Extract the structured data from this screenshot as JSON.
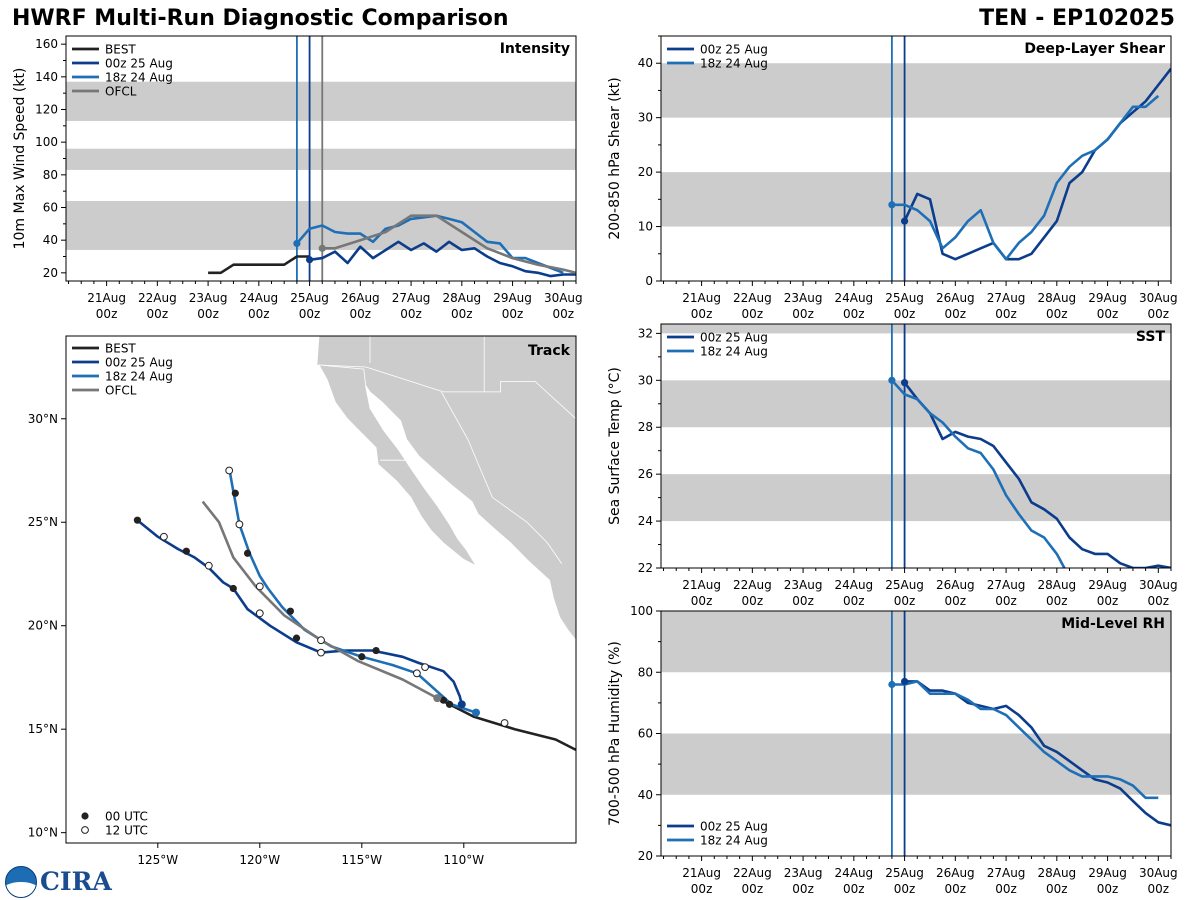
{
  "header": {
    "title": "HWRF Multi-Run Diagnostic Comparison",
    "storm": "TEN - EP102025"
  },
  "colors": {
    "best": "#222222",
    "run00": "#0b3d8c",
    "run18": "#1f6fb7",
    "ofcl": "#777777",
    "band": "#cccccc",
    "land": "#cccccc"
  },
  "time_ticks": [
    "21Aug",
    "22Aug",
    "23Aug",
    "24Aug",
    "25Aug",
    "26Aug",
    "27Aug",
    "28Aug",
    "29Aug",
    "30Aug"
  ],
  "time_sub": "00z",
  "legend_labels": {
    "best": "BEST",
    "run00": "00z 25 Aug",
    "run18": "18z 24 Aug",
    "ofcl": "OFCL"
  },
  "track_legend_markers": {
    "filled": "00 UTC",
    "open": "12 UTC"
  },
  "logo": {
    "text": "CIRA",
    "emblem": "noaa-logo-icon"
  },
  "chart_data": [
    {
      "id": "intensity",
      "type": "line",
      "title": "Intensity",
      "ylabel": "10m Max Wind Speed (kt)",
      "xlim": [
        -4.8,
        5.25
      ],
      "ylim": [
        15,
        165
      ],
      "yticks": [
        20,
        40,
        60,
        80,
        100,
        120,
        140,
        160
      ],
      "bands": [
        [
          34,
          64
        ],
        [
          83,
          96
        ],
        [
          113,
          137
        ]
      ],
      "vlines": [
        {
          "x": -0.25,
          "series": "run18"
        },
        {
          "x": 0,
          "series": "run00"
        },
        {
          "x": 0.25,
          "series": "ofcl"
        }
      ],
      "series": [
        {
          "key": "best",
          "x": [
            -2,
            -1.75,
            -1.5,
            -1.25,
            -1,
            -0.75,
            -0.5,
            -0.25,
            0
          ],
          "y": [
            20,
            20,
            25,
            25,
            25,
            25,
            25,
            30,
            30
          ]
        },
        {
          "key": "run00",
          "x": [
            0,
            0.25,
            0.5,
            0.75,
            1,
            1.25,
            1.5,
            1.75,
            2,
            2.25,
            2.5,
            2.75,
            3,
            3.25,
            3.5,
            3.75,
            4,
            4.25,
            4.5,
            4.75,
            5,
            5.25
          ],
          "y": [
            28,
            29,
            33,
            26,
            36,
            29,
            34,
            39,
            34,
            38,
            33,
            39,
            34,
            35,
            30,
            26,
            24,
            21,
            20,
            18,
            19,
            19
          ]
        },
        {
          "key": "run18",
          "x": [
            -0.25,
            0,
            0.25,
            0.5,
            0.75,
            1,
            1.25,
            1.5,
            1.75,
            2,
            2.25,
            2.5,
            2.75,
            3,
            3.25,
            3.5,
            3.75,
            4,
            4.25,
            4.5,
            4.75,
            5
          ],
          "y": [
            38,
            47,
            49,
            45,
            44,
            44,
            39,
            47,
            49,
            53,
            54,
            55,
            53,
            51,
            45,
            39,
            38,
            29,
            29,
            26,
            23,
            20
          ]
        },
        {
          "key": "ofcl",
          "x": [
            0.25,
            0.5,
            1,
            1.5,
            1.75,
            2,
            2.25,
            2.5,
            3,
            3.5,
            4,
            4.5,
            5,
            5.25
          ],
          "y": [
            35,
            35,
            40,
            45,
            50,
            55,
            55,
            55,
            45,
            35,
            29,
            25,
            22,
            20
          ]
        }
      ],
      "markers": [
        {
          "series": "run00",
          "x": 0,
          "y": 28
        },
        {
          "series": "run18",
          "x": -0.25,
          "y": 38
        },
        {
          "series": "ofcl",
          "x": 0.25,
          "y": 35
        }
      ]
    },
    {
      "id": "shear",
      "type": "line",
      "title": "Deep-Layer Shear",
      "ylabel": "200-850 hPa Shear (kt)",
      "xlim": [
        -4.8,
        5.25
      ],
      "ylim": [
        0,
        45
      ],
      "yticks": [
        0,
        10,
        20,
        30,
        40
      ],
      "bands": [
        [
          10,
          20
        ],
        [
          30,
          40
        ]
      ],
      "vlines": [
        {
          "x": -0.25,
          "series": "run18"
        },
        {
          "x": 0,
          "series": "run00"
        }
      ],
      "series": [
        {
          "key": "run00",
          "x": [
            0,
            0.25,
            0.5,
            0.75,
            1,
            1.25,
            1.5,
            1.75,
            2,
            2.25,
            2.5,
            2.75,
            3,
            3.25,
            3.5,
            3.75,
            4,
            4.25,
            4.5,
            4.75,
            5,
            5.25
          ],
          "y": [
            11,
            16,
            15,
            5,
            4,
            5,
            6,
            7,
            4,
            4,
            5,
            8,
            11,
            18,
            20,
            24,
            26,
            29,
            31,
            33,
            36,
            39
          ]
        },
        {
          "key": "run18",
          "x": [
            -0.25,
            0,
            0.25,
            0.5,
            0.75,
            1,
            1.25,
            1.5,
            1.75,
            2,
            2.25,
            2.5,
            2.75,
            3,
            3.25,
            3.5,
            3.75,
            4,
            4.25,
            4.5,
            4.75,
            5
          ],
          "y": [
            14,
            14,
            13,
            11,
            6,
            8,
            11,
            13,
            7,
            4,
            7,
            9,
            12,
            18,
            21,
            23,
            24,
            26,
            29,
            32,
            32,
            34
          ]
        }
      ],
      "markers": [
        {
          "series": "run00",
          "x": 0,
          "y": 11
        },
        {
          "series": "run18",
          "x": -0.25,
          "y": 14
        }
      ]
    },
    {
      "id": "sst",
      "type": "line",
      "title": "SST",
      "ylabel": "Sea Surface Temp (°C)",
      "xlim": [
        -4.8,
        5.25
      ],
      "ylim": [
        22,
        32.4
      ],
      "yticks": [
        22,
        24,
        26,
        28,
        30,
        32
      ],
      "bands": [
        [
          24,
          26
        ],
        [
          28,
          30
        ],
        [
          32,
          32.4
        ]
      ],
      "vlines": [
        {
          "x": -0.25,
          "series": "run18"
        },
        {
          "x": 0,
          "series": "run00"
        }
      ],
      "series": [
        {
          "key": "run00",
          "x": [
            0,
            0.25,
            0.5,
            0.75,
            1,
            1.25,
            1.5,
            1.75,
            2,
            2.25,
            2.5,
            2.75,
            3,
            3.25,
            3.5,
            3.75,
            4,
            4.25,
            4.5,
            4.75,
            5,
            5.25
          ],
          "y": [
            29.9,
            29.2,
            28.6,
            27.5,
            27.8,
            27.6,
            27.5,
            27.2,
            26.5,
            25.8,
            24.8,
            24.5,
            24.1,
            23.3,
            22.8,
            22.6,
            22.6,
            22.2,
            22.0,
            22.0,
            22.1,
            22.0
          ]
        },
        {
          "key": "run18",
          "x": [
            -0.25,
            0,
            0.25,
            0.5,
            0.75,
            1,
            1.25,
            1.5,
            1.75,
            2,
            2.25,
            2.5,
            2.75,
            3,
            3.15
          ],
          "y": [
            30.0,
            29.4,
            29.2,
            28.6,
            28.2,
            27.6,
            27.1,
            26.9,
            26.2,
            25.1,
            24.3,
            23.6,
            23.3,
            22.6,
            22.0
          ]
        }
      ],
      "markers": [
        {
          "series": "run00",
          "x": 0,
          "y": 29.9
        },
        {
          "series": "run18",
          "x": -0.25,
          "y": 30.0
        }
      ]
    },
    {
      "id": "rh",
      "type": "line",
      "title": "Mid-Level RH",
      "ylabel": "700-500 hPa Humidity (%)",
      "xlim": [
        -4.8,
        5.25
      ],
      "ylim": [
        20,
        100
      ],
      "yticks": [
        20,
        40,
        60,
        80,
        100
      ],
      "bands": [
        [
          40,
          60
        ],
        [
          80,
          100
        ]
      ],
      "vlines": [
        {
          "x": -0.25,
          "series": "run18"
        },
        {
          "x": 0,
          "series": "run00"
        }
      ],
      "series": [
        {
          "key": "run00",
          "x": [
            0,
            0.25,
            0.5,
            0.75,
            1,
            1.25,
            1.5,
            1.75,
            2,
            2.25,
            2.5,
            2.75,
            3,
            3.25,
            3.5,
            3.75,
            4,
            4.25,
            4.5,
            4.75,
            5,
            5.25
          ],
          "y": [
            77,
            77,
            74,
            74,
            73,
            70,
            69,
            68,
            69,
            66,
            62,
            56,
            54,
            51,
            48,
            45,
            44,
            42,
            38,
            34,
            31,
            30
          ]
        },
        {
          "key": "run18",
          "x": [
            -0.25,
            0,
            0.25,
            0.5,
            0.75,
            1,
            1.25,
            1.5,
            1.75,
            2,
            2.25,
            2.5,
            2.75,
            3,
            3.25,
            3.5,
            3.75,
            4,
            4.25,
            4.5,
            4.75,
            5
          ],
          "y": [
            76,
            76,
            77,
            73,
            73,
            73,
            71,
            68,
            68,
            66,
            62,
            58,
            54,
            51,
            48,
            46,
            46,
            46,
            45,
            43,
            39,
            39
          ]
        }
      ],
      "markers": [
        {
          "series": "run00",
          "x": 0,
          "y": 77
        },
        {
          "series": "run18",
          "x": -0.25,
          "y": 76
        }
      ]
    },
    {
      "id": "track",
      "type": "scatter",
      "title": "Track",
      "lon_range": [
        -129.5,
        -104.5
      ],
      "lat_range": [
        9.5,
        34
      ],
      "lon_ticks": [
        -125,
        -120,
        -115,
        -110
      ],
      "lon_labels": [
        "125°W",
        "120°W",
        "115°W",
        "110°W"
      ],
      "lat_ticks": [
        10,
        15,
        20,
        25,
        30
      ],
      "lat_labels": [
        "10°N",
        "15°N",
        "20°N",
        "25°N",
        "30°N"
      ],
      "tracks": [
        {
          "key": "best",
          "lon": [
            -104.5,
            -105.5,
            -107.5,
            -108.5,
            -109.5,
            -110.1,
            -110.7,
            -111.3
          ],
          "lat": [
            14.0,
            14.5,
            15.0,
            15.3,
            15.6,
            15.9,
            16.2,
            16.5
          ]
        },
        {
          "key": "run00",
          "lon": [
            -110.1,
            -110.2,
            -110.5,
            -111.0,
            -112.2,
            -113.0,
            -114.5,
            -115.8,
            -117.0,
            -118.2,
            -119.5,
            -120.6,
            -121.3,
            -121.8,
            -122.5,
            -123.2,
            -124.0,
            -125.0,
            -126.0
          ],
          "lat": [
            16.2,
            16.6,
            17.3,
            17.8,
            18.2,
            18.5,
            18.8,
            18.8,
            18.7,
            19.2,
            20.0,
            20.8,
            21.8,
            22.1,
            22.8,
            23.3,
            23.7,
            24.3,
            25.1
          ]
        },
        {
          "key": "run18",
          "lon": [
            -109.4,
            -110.0,
            -110.6,
            -112.3,
            -113.5,
            -115.0,
            -116.5,
            -117.8,
            -118.9,
            -119.6,
            -120.0,
            -120.5,
            -121.0,
            -121.2,
            -121.3,
            -121.5
          ],
          "lat": [
            15.8,
            16.0,
            16.2,
            17.7,
            18.1,
            18.5,
            19.0,
            19.8,
            20.9,
            21.8,
            22.4,
            23.5,
            24.9,
            26.0,
            26.5,
            27.6
          ]
        },
        {
          "key": "ofcl",
          "lon": [
            -111.3,
            -113.0,
            -115.2,
            -117.0,
            -118.8,
            -120.2,
            -121.3,
            -122.0,
            -122.8
          ],
          "lat": [
            16.5,
            17.4,
            18.3,
            19.3,
            20.5,
            21.9,
            23.3,
            25.0,
            26.0
          ]
        }
      ],
      "points_filled": [
        [
          -110.7,
          16.2
        ],
        [
          -111.0,
          16.4
        ],
        [
          -114.3,
          18.8
        ],
        [
          -115.0,
          18.5
        ],
        [
          -118.5,
          20.7
        ],
        [
          -120.6,
          23.5
        ],
        [
          -121.2,
          26.4
        ],
        [
          -118.2,
          19.4
        ],
        [
          -121.3,
          21.8
        ],
        [
          -123.6,
          23.6
        ],
        [
          -126.0,
          25.1
        ]
      ],
      "points_open": [
        [
          -108.0,
          15.3
        ],
        [
          -112.3,
          17.7
        ],
        [
          -111.9,
          18.0
        ],
        [
          -117.0,
          18.7
        ],
        [
          -117.0,
          19.3
        ],
        [
          -120.0,
          20.6
        ],
        [
          -120.0,
          21.9
        ],
        [
          -122.5,
          22.9
        ],
        [
          -124.7,
          24.3
        ],
        [
          -121.0,
          24.9
        ],
        [
          -121.5,
          27.5
        ]
      ],
      "points_colored": [
        {
          "series": "run00",
          "lon": -110.1,
          "lat": 16.2
        },
        {
          "series": "run18",
          "lon": -109.4,
          "lat": 15.8
        },
        {
          "series": "ofcl",
          "lon": -111.3,
          "lat": 16.5
        }
      ]
    }
  ]
}
